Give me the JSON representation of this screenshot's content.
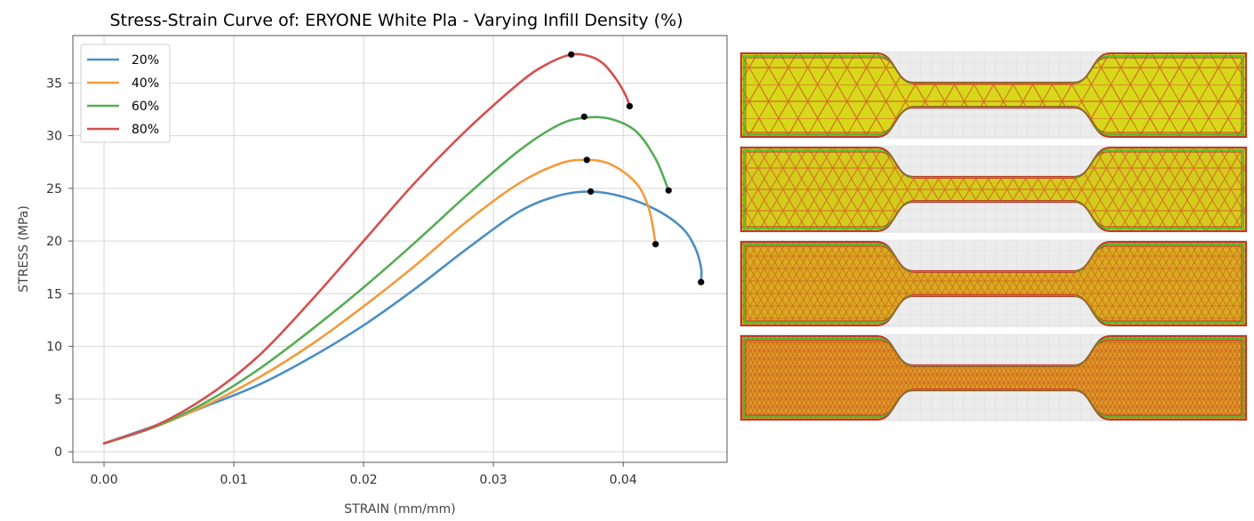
{
  "chart_data": {
    "type": "line",
    "title": "Stress-Strain Curve of: ERYONE White Pla - Varying Infill Density (%)",
    "xlabel": "STRAIN (mm/mm)",
    "ylabel": "STRESS (MPa)",
    "xlim": [
      -0.0024,
      0.048
    ],
    "ylim": [
      -1.0,
      39.5
    ],
    "xticks": [
      0.0,
      0.01,
      0.02,
      0.03,
      0.04
    ],
    "xtick_labels": [
      "0.00",
      "0.01",
      "0.02",
      "0.03",
      "0.04"
    ],
    "yticks": [
      0,
      5,
      10,
      15,
      20,
      25,
      30,
      35
    ],
    "ytick_labels": [
      "0",
      "5",
      "10",
      "15",
      "20",
      "25",
      "30",
      "35"
    ],
    "grid": true,
    "legend_position": "top-left",
    "series": [
      {
        "name": "20%",
        "color": "#4a8fc4",
        "x": [
          0.0,
          0.004,
          0.008,
          0.012,
          0.016,
          0.02,
          0.024,
          0.028,
          0.032,
          0.035,
          0.0375,
          0.04,
          0.0425,
          0.0445,
          0.0455,
          0.046,
          0.046
        ],
        "y": [
          0.8,
          2.5,
          4.4,
          6.4,
          9.0,
          12.0,
          15.5,
          19.3,
          22.8,
          24.3,
          24.7,
          24.2,
          23.0,
          21.3,
          19.5,
          17.5,
          16.1
        ],
        "markers": [
          [
            0.0375,
            24.7
          ],
          [
            0.046,
            16.1
          ]
        ]
      },
      {
        "name": "40%",
        "color": "#f59a3b",
        "x": [
          0.0,
          0.004,
          0.008,
          0.012,
          0.016,
          0.02,
          0.024,
          0.028,
          0.032,
          0.035,
          0.037,
          0.039,
          0.041,
          0.042,
          0.0425
        ],
        "y": [
          0.8,
          2.4,
          4.5,
          7.1,
          10.2,
          13.8,
          17.7,
          21.9,
          25.5,
          27.3,
          27.7,
          27.3,
          25.5,
          23.0,
          19.7
        ],
        "markers": [
          [
            0.0372,
            27.7
          ],
          [
            0.0425,
            19.7
          ]
        ]
      },
      {
        "name": "60%",
        "color": "#55ad55",
        "x": [
          0.0,
          0.004,
          0.008,
          0.012,
          0.016,
          0.02,
          0.024,
          0.028,
          0.032,
          0.035,
          0.037,
          0.039,
          0.041,
          0.0425,
          0.0435
        ],
        "y": [
          0.8,
          2.4,
          4.8,
          7.9,
          11.6,
          15.6,
          19.9,
          24.4,
          28.6,
          31.0,
          31.7,
          31.6,
          30.4,
          27.8,
          24.8
        ],
        "markers": [
          [
            0.037,
            31.8
          ],
          [
            0.0435,
            24.8
          ]
        ]
      },
      {
        "name": "80%",
        "color": "#d64f4f",
        "x": [
          0.0,
          0.004,
          0.008,
          0.012,
          0.016,
          0.02,
          0.024,
          0.028,
          0.032,
          0.034,
          0.036,
          0.0375,
          0.0385,
          0.0395,
          0.0402,
          0.0405
        ],
        "y": [
          0.8,
          2.5,
          5.3,
          9.2,
          14.4,
          20.0,
          25.6,
          30.6,
          35.0,
          36.7,
          37.7,
          37.5,
          36.8,
          35.3,
          33.8,
          32.8
        ],
        "markers": [
          [
            0.036,
            37.7
          ],
          [
            0.0405,
            32.8
          ]
        ]
      }
    ]
  },
  "specimens": {
    "count": 4,
    "colors": {
      "fill_sparse": "#d8d81a",
      "fill_dense": "#e09a28",
      "infill_line": "#d47a22",
      "perimeter_outer": "#c0392b",
      "perimeter_inner": "#3bbf2a",
      "background": "#ececec"
    },
    "infill_densities": [
      20,
      40,
      60,
      80
    ]
  }
}
